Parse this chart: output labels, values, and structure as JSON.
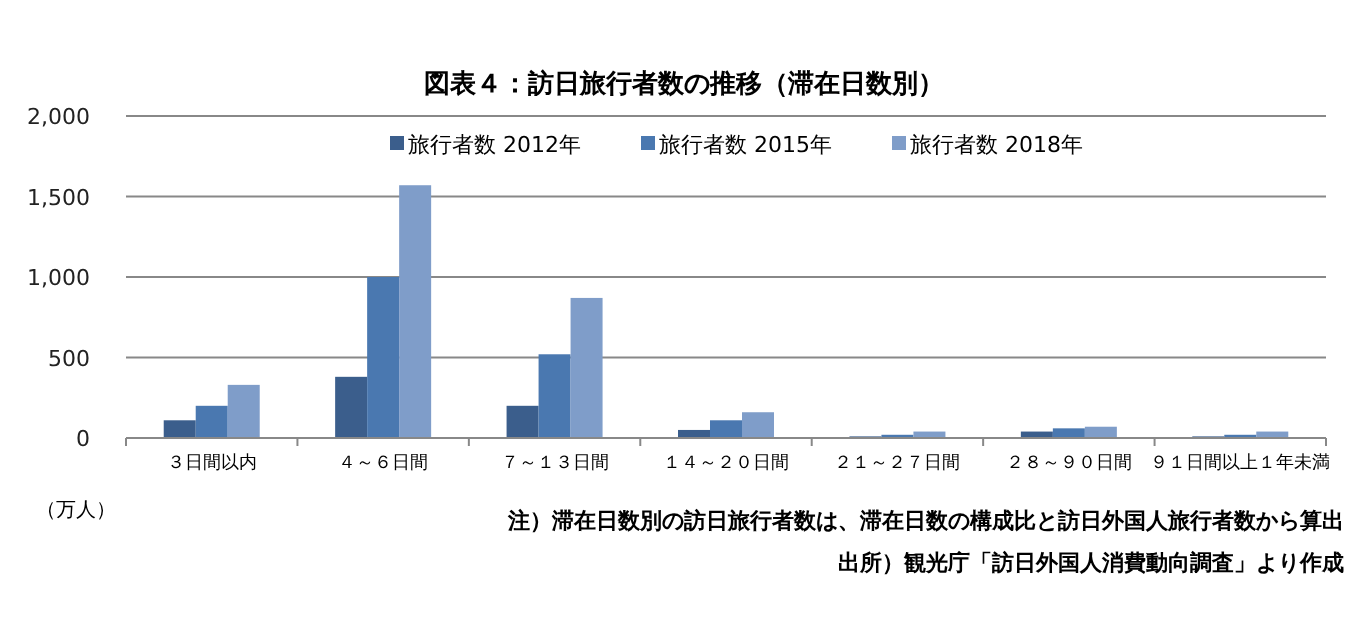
{
  "chart_data": {
    "type": "bar",
    "title": "図表４：訪日旅行者数の推移（滞在日数別）",
    "ylabel": "（万人）",
    "categories": [
      "３日間以内",
      "４～６日間",
      "７～１３日間",
      "１４～２０日間",
      "２１～２７日間",
      "２８～９０日間",
      "９１日間以上１年未満"
    ],
    "series": [
      {
        "name": "旅行者数 2012年",
        "color": "#3b5e8c",
        "values": [
          110,
          380,
          200,
          50,
          10,
          40,
          10
        ]
      },
      {
        "name": "旅行者数 2015年",
        "color": "#4a78b0",
        "values": [
          200,
          1000,
          520,
          110,
          20,
          60,
          20
        ]
      },
      {
        "name": "旅行者数 2018年",
        "color": "#7f9dc9",
        "values": [
          330,
          1570,
          870,
          160,
          40,
          70,
          40
        ]
      }
    ],
    "ylim": [
      0,
      2000
    ],
    "yticks": [
      {
        "value": 0,
        "label": "0"
      },
      {
        "value": 500,
        "label": "500"
      },
      {
        "value": 1000,
        "label": "1,000"
      },
      {
        "value": 1500,
        "label": "1,500"
      },
      {
        "value": 2000,
        "label": "2,000"
      }
    ],
    "grid": "y",
    "legend": "top",
    "annotations": [
      "注）滞在日数別の訪日旅行者数は、滞在日数の構成比と訪日外国人旅行者数から算出",
      "出所）観光庁「訪日外国人消費動向調査」より作成"
    ]
  }
}
